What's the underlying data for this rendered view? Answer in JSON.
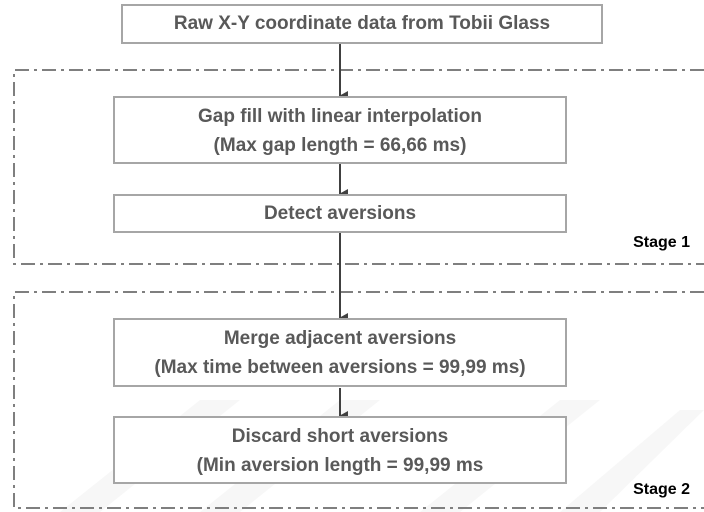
{
  "nodes": [
    {
      "label": "Raw X-Y coordinate data from Tobii Glass"
    },
    {
      "label": "Gap fill with linear interpolation",
      "sublabel": "(Max gap length = 66,66 ms)"
    },
    {
      "label": "Detect aversions"
    },
    {
      "label": "Merge adjacent aversions",
      "sublabel": "(Max time between aversions = 99,99 ms)"
    },
    {
      "label": "Discard short aversions",
      "sublabel": "(Min aversion length = 99,99 ms"
    }
  ],
  "stages": [
    {
      "label": "Stage 1"
    },
    {
      "label": "Stage 2"
    }
  ]
}
